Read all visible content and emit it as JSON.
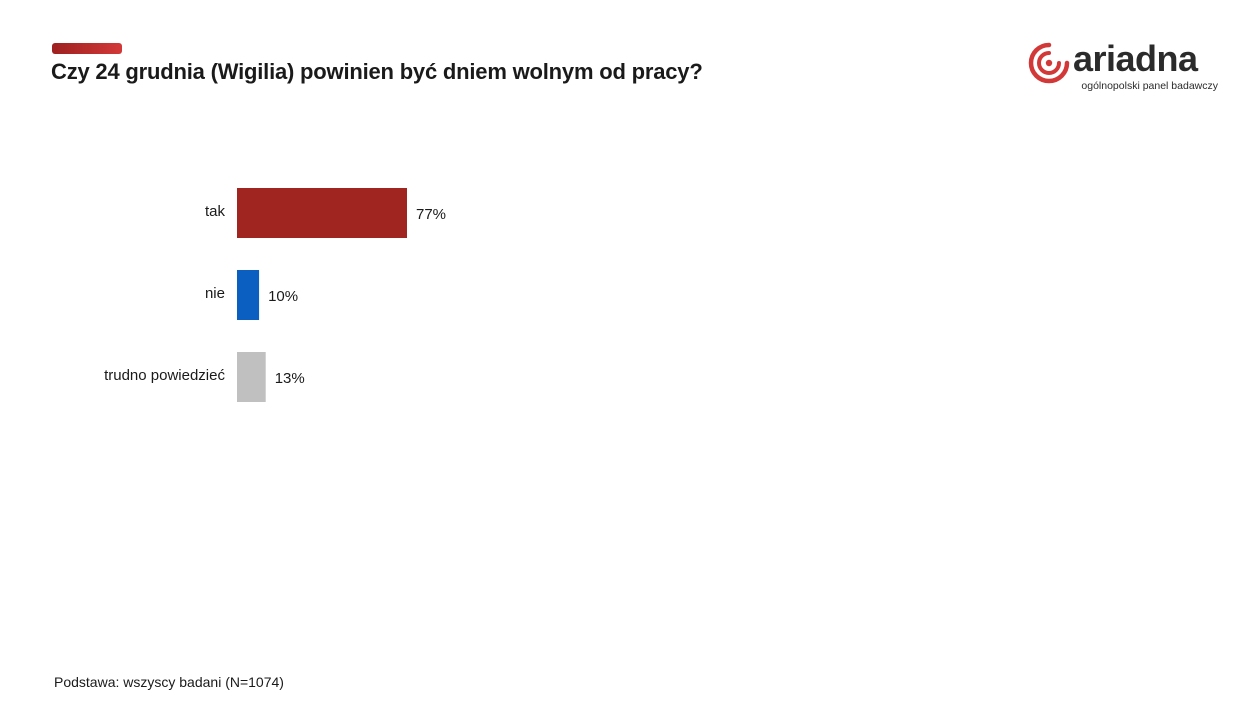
{
  "header": {
    "title": "Czy 24 grudnia (Wigilia) powinien być dniem wolnym od pracy?"
  },
  "brand": {
    "name": "ariadna",
    "tagline": "ogólnopolski panel badawczy",
    "logo_icon": "ariadna-spiral-icon",
    "color": "#d33838"
  },
  "chart_data": {
    "type": "bar",
    "orientation": "horizontal",
    "categories": [
      "tak",
      "nie",
      "trudno powiedzieć"
    ],
    "values": [
      77,
      10,
      13
    ],
    "value_labels": [
      "77%",
      "10%",
      "13%"
    ],
    "colors": [
      "#a0241f",
      "#0a5fc0",
      "#c0c0c0"
    ],
    "unit": "%",
    "xlim": [
      0,
      100
    ],
    "grid": false,
    "legend": "none"
  },
  "footnote": {
    "text": "Podstawa: wszyscy badani  (N=1074)"
  }
}
